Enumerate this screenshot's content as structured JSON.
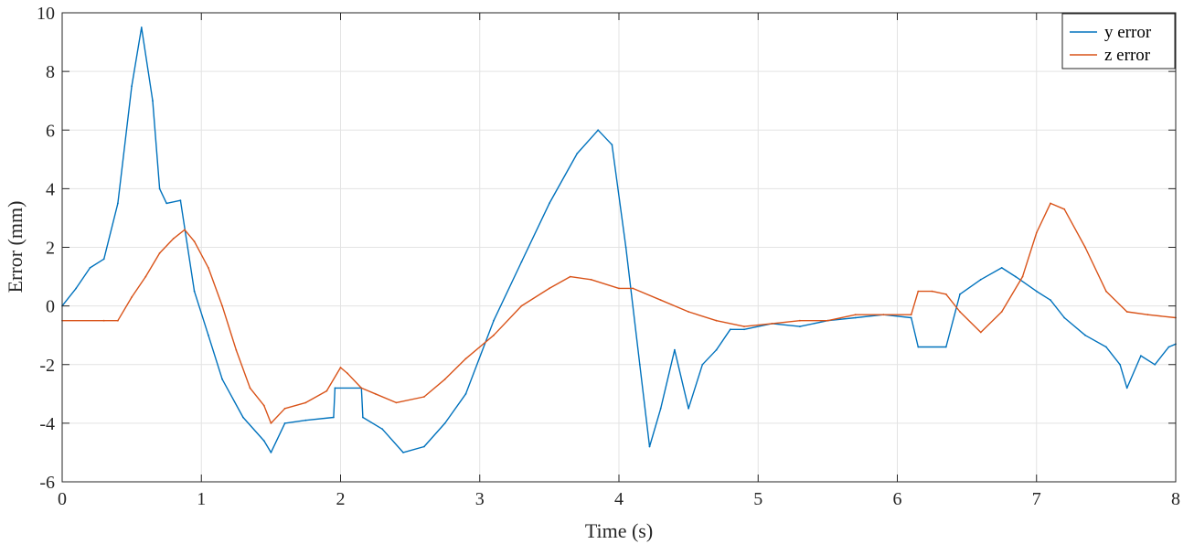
{
  "chart_data": {
    "type": "line",
    "title": "",
    "xlabel": "Time (s)",
    "ylabel": "Error (mm)",
    "xlim": [
      0,
      8
    ],
    "ylim": [
      -6,
      10
    ],
    "xticks": [
      0,
      1,
      2,
      3,
      4,
      5,
      6,
      7,
      8
    ],
    "yticks": [
      -6,
      -4,
      -2,
      0,
      2,
      4,
      6,
      8,
      10
    ],
    "grid": true,
    "legend_position": "top-right",
    "series": [
      {
        "name": "y error",
        "color": "#0072BD",
        "x": [
          0,
          0.1,
          0.2,
          0.3,
          0.4,
          0.5,
          0.57,
          0.65,
          0.7,
          0.75,
          0.85,
          0.95,
          1.05,
          1.15,
          1.3,
          1.45,
          1.5,
          1.6,
          1.75,
          1.95,
          1.96,
          2.15,
          2.16,
          2.3,
          2.45,
          2.6,
          2.75,
          2.9,
          3.1,
          3.3,
          3.5,
          3.7,
          3.85,
          3.95,
          4.05,
          4.15,
          4.22,
          4.3,
          4.4,
          4.5,
          4.6,
          4.7,
          4.8,
          4.9,
          5.1,
          5.3,
          5.5,
          5.7,
          5.9,
          6.1,
          6.15,
          6.35,
          6.45,
          6.6,
          6.75,
          6.85,
          7.0,
          7.1,
          7.2,
          7.35,
          7.5,
          7.6,
          7.65,
          7.75,
          7.85,
          7.95,
          8.0
        ],
        "y": [
          0,
          0.6,
          1.3,
          1.6,
          3.5,
          7.5,
          9.5,
          7.0,
          4.0,
          3.5,
          3.6,
          0.5,
          -1.0,
          -2.5,
          -3.8,
          -4.6,
          -5.0,
          -4.0,
          -3.9,
          -3.8,
          -2.8,
          -2.8,
          -3.8,
          -4.2,
          -5.0,
          -4.8,
          -4.0,
          -3.0,
          -0.5,
          1.5,
          3.5,
          5.2,
          6.0,
          5.5,
          2.0,
          -2.0,
          -4.8,
          -3.5,
          -1.5,
          -3.5,
          -2.0,
          -1.5,
          -0.8,
          -0.8,
          -0.6,
          -0.7,
          -0.5,
          -0.4,
          -0.3,
          -0.4,
          -1.4,
          -1.4,
          0.4,
          0.9,
          1.3,
          1.0,
          0.5,
          0.2,
          -0.4,
          -1.0,
          -1.4,
          -2.0,
          -2.8,
          -1.7,
          -2.0,
          -1.4,
          -1.3
        ]
      },
      {
        "name": "z error",
        "color": "#D95319",
        "x": [
          0,
          0.3,
          0.4,
          0.5,
          0.6,
          0.7,
          0.8,
          0.88,
          0.95,
          1.05,
          1.15,
          1.25,
          1.35,
          1.45,
          1.5,
          1.6,
          1.75,
          1.9,
          2.0,
          2.05,
          2.15,
          2.25,
          2.4,
          2.6,
          2.75,
          2.9,
          3.1,
          3.3,
          3.5,
          3.65,
          3.8,
          4.0,
          4.1,
          4.3,
          4.5,
          4.7,
          4.9,
          5.1,
          5.3,
          5.5,
          5.7,
          5.9,
          6.1,
          6.15,
          6.25,
          6.35,
          6.45,
          6.6,
          6.75,
          6.9,
          7.0,
          7.1,
          7.2,
          7.35,
          7.5,
          7.65,
          7.8,
          8.0
        ],
        "y": [
          -0.5,
          -0.5,
          -0.5,
          0.3,
          1.0,
          1.8,
          2.3,
          2.6,
          2.2,
          1.3,
          0,
          -1.5,
          -2.8,
          -3.4,
          -4.0,
          -3.5,
          -3.3,
          -2.9,
          -2.1,
          -2.3,
          -2.8,
          -3.0,
          -3.3,
          -3.1,
          -2.5,
          -1.8,
          -1.0,
          0,
          0.6,
          1.0,
          0.9,
          0.6,
          0.6,
          0.2,
          -0.2,
          -0.5,
          -0.7,
          -0.6,
          -0.5,
          -0.5,
          -0.3,
          -0.3,
          -0.3,
          0.5,
          0.5,
          0.4,
          -0.2,
          -0.9,
          -0.2,
          1.0,
          2.5,
          3.5,
          3.3,
          2.0,
          0.5,
          -0.2,
          -0.3,
          -0.4
        ]
      }
    ]
  }
}
